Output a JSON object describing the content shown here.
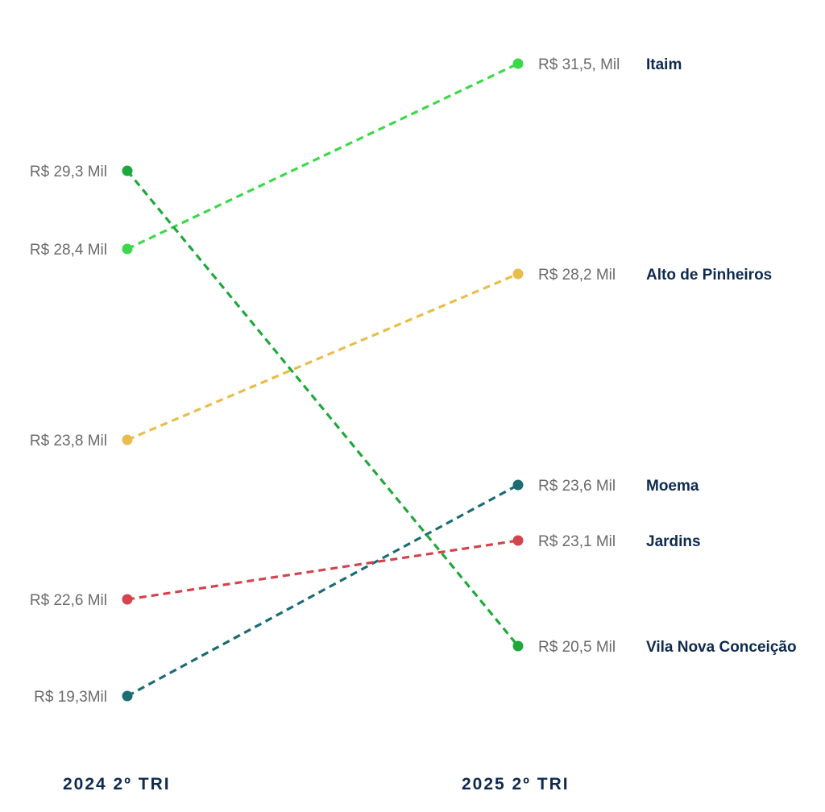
{
  "chart_data": {
    "type": "line",
    "x": [
      "2024 2º TRI",
      "2025 2º TRI"
    ],
    "series": [
      {
        "name": "Itaim",
        "values": [
          28.4,
          31.5
        ],
        "start_label": "R$ 28,4 Mil",
        "end_label": "R$ 31,5, Mil",
        "color": "#3bd94a"
      },
      {
        "name": "Alto de Pinheiros",
        "values": [
          23.8,
          28.2
        ],
        "start_label": "R$ 23,8 Mil",
        "end_label": "R$ 28,2 Mil",
        "color": "#e9bd4b"
      },
      {
        "name": "Moema",
        "values": [
          19.3,
          23.6
        ],
        "start_label": "R$ 19,3Mil",
        "end_label": "R$ 23,6 Mil",
        "color": "#1b6c73"
      },
      {
        "name": "Jardins",
        "values": [
          22.6,
          23.1
        ],
        "start_label": "R$ 22,6 Mil",
        "end_label": "R$ 23,1 Mil",
        "color": "#d3444c"
      },
      {
        "name": "Vila Nova Conceição",
        "values": [
          29.3,
          20.5
        ],
        "start_label": "R$ 29,3 Mil",
        "end_label": "R$ 20,5 Mil",
        "color": "#1ea83c"
      }
    ],
    "line_style": "dashed"
  },
  "periods": {
    "left": "2024 2º TRI",
    "right": "2025 2º TRI"
  }
}
